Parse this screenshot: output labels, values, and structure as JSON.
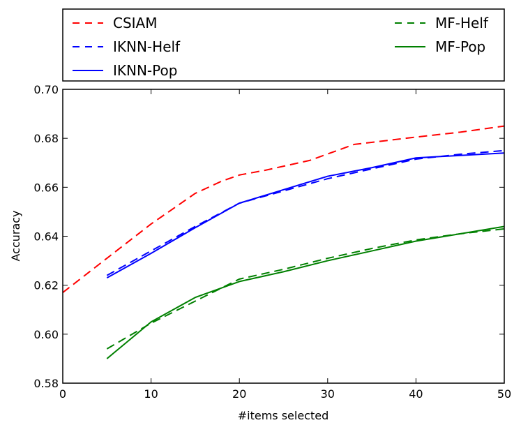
{
  "chart_data": {
    "type": "line",
    "title": "",
    "xlabel": "#items selected",
    "ylabel": "Accuracy",
    "xlim": [
      0,
      50
    ],
    "ylim": [
      0.58,
      0.7
    ],
    "xticks": [
      0,
      10,
      20,
      30,
      40,
      50
    ],
    "xtick_labels": [
      "0",
      "10",
      "20",
      "30",
      "40",
      "50"
    ],
    "yticks": [
      0.58,
      0.6,
      0.62,
      0.64,
      0.66,
      0.68,
      0.7
    ],
    "ytick_labels": [
      "0.58",
      "0.60",
      "0.62",
      "0.64",
      "0.66",
      "0.68",
      "0.70"
    ],
    "grid": false,
    "legend": {
      "placement": "above",
      "columns": 2
    },
    "series": [
      {
        "name": "CSIAM",
        "color": "#ff0000",
        "dash": "dashed",
        "x": [
          0,
          5,
          10,
          15,
          18,
          20,
          23,
          28,
          33,
          40,
          45,
          50
        ],
        "y": [
          0.617,
          0.631,
          0.645,
          0.6575,
          0.6625,
          0.665,
          0.667,
          0.671,
          0.6775,
          0.6805,
          0.6825,
          0.685
        ]
      },
      {
        "name": "IKNN-Helf",
        "color": "#0000ff",
        "dash": "dashed",
        "x": [
          5,
          10,
          15,
          20,
          25,
          30,
          35,
          40,
          45,
          50
        ],
        "y": [
          0.624,
          0.634,
          0.644,
          0.6535,
          0.6585,
          0.6635,
          0.6675,
          0.6715,
          0.6735,
          0.675
        ]
      },
      {
        "name": "IKNN-Pop",
        "color": "#0000ff",
        "dash": "solid",
        "x": [
          5,
          10,
          15,
          20,
          25,
          30,
          35,
          40,
          45,
          50
        ],
        "y": [
          0.623,
          0.633,
          0.6435,
          0.6535,
          0.659,
          0.6645,
          0.668,
          0.672,
          0.673,
          0.674
        ]
      },
      {
        "name": "MF-Helf",
        "color": "#008000",
        "dash": "dashed",
        "x": [
          5,
          10,
          15,
          20,
          25,
          30,
          35,
          40,
          45,
          50
        ],
        "y": [
          0.594,
          0.6045,
          0.6135,
          0.6225,
          0.6265,
          0.631,
          0.635,
          0.6385,
          0.641,
          0.643
        ]
      },
      {
        "name": "MF-Pop",
        "color": "#008000",
        "dash": "solid",
        "x": [
          5,
          8,
          10,
          15,
          20,
          25,
          30,
          35,
          40,
          45,
          50
        ],
        "y": [
          0.59,
          0.599,
          0.605,
          0.615,
          0.6215,
          0.6255,
          0.63,
          0.634,
          0.638,
          0.641,
          0.644
        ]
      }
    ]
  }
}
